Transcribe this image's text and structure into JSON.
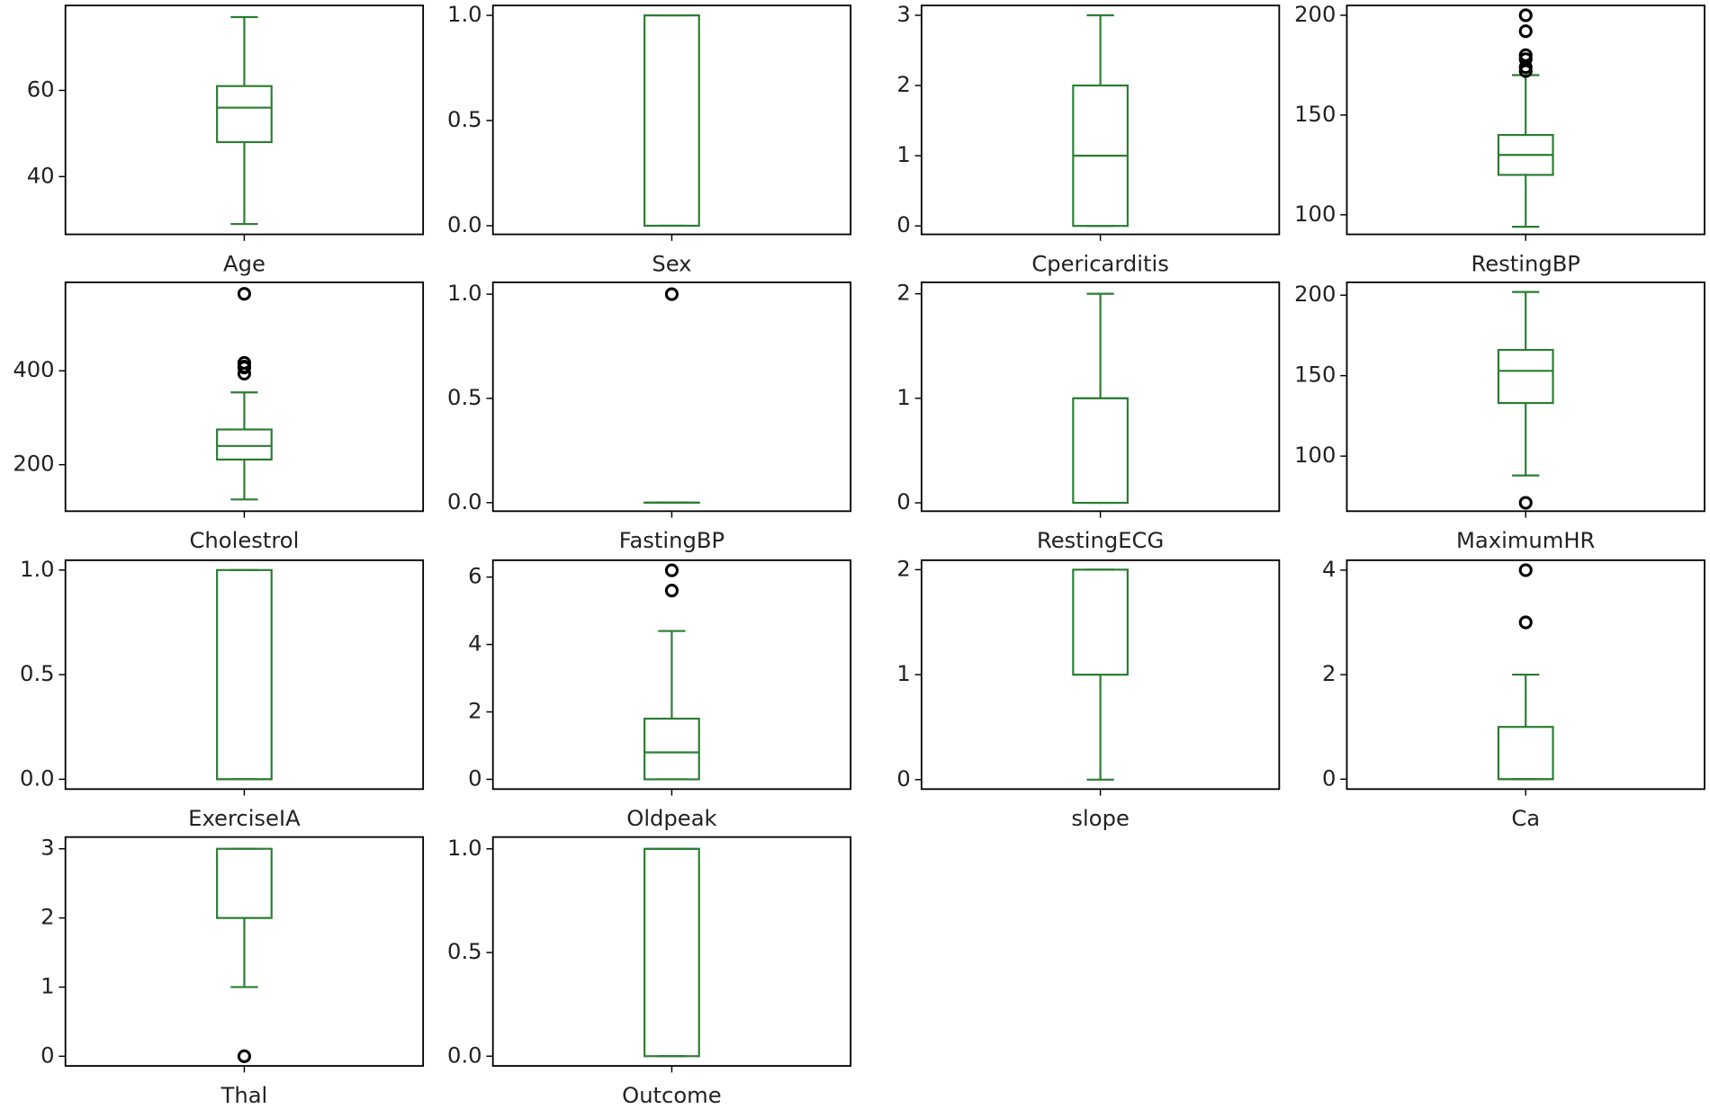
{
  "chart_data": [
    {
      "type": "box",
      "categories": [
        "Age"
      ],
      "color": "#2b7d33",
      "ylim": [
        26.6,
        79.7
      ],
      "yticks": [
        40,
        60
      ],
      "whislo": 29,
      "q1": 48,
      "med": 56,
      "q3": 61,
      "whishi": 77,
      "fliers": []
    },
    {
      "type": "box",
      "categories": [
        "Sex"
      ],
      "color": "#2b7d33",
      "ylim": [
        -0.041,
        1.047
      ],
      "yticks": [
        {
          "value": 0,
          "label": "0.0"
        },
        {
          "value": 0.5,
          "label": "0.5"
        },
        {
          "value": 1,
          "label": "1.0"
        }
      ],
      "whislo": 0,
      "q1": 0,
      "med": 1,
      "q3": 1,
      "whishi": 1,
      "fliers": []
    },
    {
      "type": "box",
      "categories": [
        "Cpericarditis"
      ],
      "color": "#2b7d33",
      "ylim": [
        -0.12,
        3.14
      ],
      "yticks": [
        0,
        1,
        2,
        3
      ],
      "whislo": 0,
      "q1": 0,
      "med": 1,
      "q3": 2,
      "whishi": 3,
      "fliers": []
    },
    {
      "type": "box",
      "categories": [
        "RestingBP"
      ],
      "color": "#2b7d33",
      "ylim": [
        90.2,
        204.9
      ],
      "yticks": [
        100,
        150,
        200
      ],
      "whislo": 94,
      "q1": 120,
      "med": 130,
      "q3": 140,
      "whishi": 170,
      "fliers": [
        172,
        174,
        178,
        180,
        192,
        200
      ]
    },
    {
      "type": "box",
      "categories": [
        "Cholestrol"
      ],
      "color": "#2b7d33",
      "ylim": [
        101,
        588.5
      ],
      "yticks": [
        200,
        400
      ],
      "whislo": 126,
      "q1": 211,
      "med": 240,
      "q3": 275,
      "whishi": 354,
      "fliers": [
        394,
        407,
        409,
        417,
        564
      ]
    },
    {
      "type": "box",
      "categories": [
        "FastingBP"
      ],
      "color": "#2b7d33",
      "ylim": [
        -0.041,
        1.057
      ],
      "yticks": [
        {
          "value": 0,
          "label": "0.0"
        },
        {
          "value": 0.5,
          "label": "0.5"
        },
        {
          "value": 1,
          "label": "1.0"
        }
      ],
      "whislo": 0,
      "q1": 0,
      "med": 0,
      "q3": 0,
      "whishi": 0,
      "fliers": [
        1
      ]
    },
    {
      "type": "box",
      "categories": [
        "RestingECG"
      ],
      "color": "#2b7d33",
      "ylim": [
        -0.08,
        2.11
      ],
      "yticks": [
        0,
        1,
        2
      ],
      "whislo": 0,
      "q1": 0,
      "med": 1,
      "q3": 1,
      "whishi": 2,
      "fliers": []
    },
    {
      "type": "box",
      "categories": [
        "MaximumHR"
      ],
      "color": "#2b7d33",
      "ylim": [
        65.8,
        208
      ],
      "yticks": [
        100,
        150,
        200
      ],
      "whislo": 88,
      "q1": 133,
      "med": 153,
      "q3": 166,
      "whishi": 202,
      "fliers": [
        71
      ]
    },
    {
      "type": "box",
      "categories": [
        "ExerciseIA"
      ],
      "color": "#2b7d33",
      "ylim": [
        -0.047,
        1.047
      ],
      "yticks": [
        {
          "value": 0,
          "label": "0.0"
        },
        {
          "value": 0.5,
          "label": "0.5"
        },
        {
          "value": 1,
          "label": "1.0"
        }
      ],
      "whislo": 0,
      "q1": 0,
      "med": 0,
      "q3": 1,
      "whishi": 1,
      "fliers": []
    },
    {
      "type": "box",
      "categories": [
        "Oldpeak"
      ],
      "color": "#2b7d33",
      "ylim": [
        -0.29,
        6.5
      ],
      "yticks": [
        0,
        2,
        4,
        6
      ],
      "whislo": 0,
      "q1": 0,
      "med": 0.8,
      "q3": 1.8,
      "whishi": 4.4,
      "fliers": [
        5.6,
        6.2
      ]
    },
    {
      "type": "box",
      "categories": [
        "slope"
      ],
      "color": "#2b7d33",
      "ylim": [
        -0.09,
        2.09
      ],
      "yticks": [
        0,
        1,
        2
      ],
      "whislo": 0,
      "q1": 1,
      "med": 1,
      "q3": 2,
      "whishi": 2,
      "fliers": []
    },
    {
      "type": "box",
      "categories": [
        "Ca"
      ],
      "color": "#2b7d33",
      "ylim": [
        -0.19,
        4.19
      ],
      "yticks": [
        0,
        2,
        4
      ],
      "whislo": 0,
      "q1": 0,
      "med": 0,
      "q3": 1,
      "whishi": 2,
      "fliers": [
        3,
        4
      ]
    },
    {
      "type": "box",
      "categories": [
        "Thal"
      ],
      "color": "#2b7d33",
      "ylim": [
        -0.14,
        3.17
      ],
      "yticks": [
        0,
        1,
        2,
        3
      ],
      "whislo": 1,
      "q1": 2,
      "med": 2,
      "q3": 3,
      "whishi": 3,
      "fliers": [
        0
      ]
    },
    {
      "type": "box",
      "categories": [
        "Outcome"
      ],
      "color": "#2b7d33",
      "ylim": [
        -0.047,
        1.057
      ],
      "yticks": [
        {
          "value": 0,
          "label": "0.0"
        },
        {
          "value": 0.5,
          "label": "0.5"
        },
        {
          "value": 1,
          "label": "1.0"
        }
      ],
      "whislo": 0,
      "q1": 0,
      "med": 1,
      "q3": 1,
      "whishi": 1,
      "fliers": []
    }
  ]
}
